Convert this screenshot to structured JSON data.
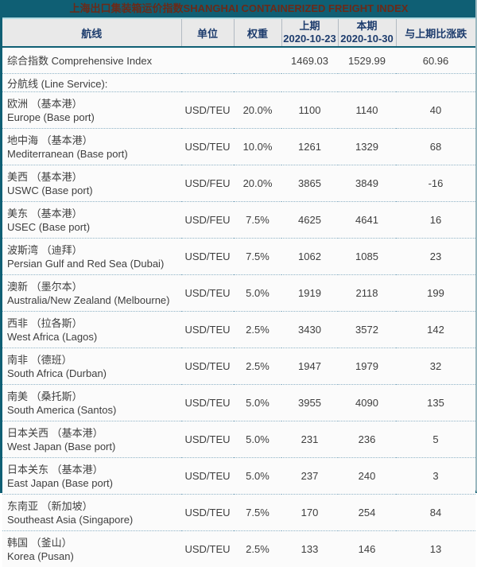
{
  "title": "上海出口集装箱运价指数SHANGHAI CONTAINERIZED FREIGHT INDEX",
  "columns": {
    "route": "航线",
    "unit": "单位",
    "weight": "权重",
    "prev_label": "上期",
    "prev_date": "2020-10-23",
    "curr_label": "本期",
    "curr_date": "2020-10-30",
    "change": "与上期比涨跌"
  },
  "comprehensive": {
    "label": "综合指数 Comprehensive Index",
    "prev": "1469.03",
    "curr": "1529.99",
    "change": "60.96"
  },
  "section_label": "分航线 (Line Service):",
  "rows": [
    {
      "cn": "欧洲 （基本港）",
      "en": "Europe (Base port)",
      "unit": "USD/TEU",
      "weight": "20.0%",
      "prev": "1100",
      "curr": "1140",
      "change": "40"
    },
    {
      "cn": "地中海 （基本港）",
      "en": "Mediterranean (Base port)",
      "unit": "USD/TEU",
      "weight": "10.0%",
      "prev": "1261",
      "curr": "1329",
      "change": "68"
    },
    {
      "cn": "美西 （基本港）",
      "en": "USWC (Base port)",
      "unit": "USD/FEU",
      "weight": "20.0%",
      "prev": "3865",
      "curr": "3849",
      "change": "-16"
    },
    {
      "cn": "美东 （基本港）",
      "en": "USEC (Base port)",
      "unit": "USD/FEU",
      "weight": "7.5%",
      "prev": "4625",
      "curr": "4641",
      "change": "16"
    },
    {
      "cn": "波斯湾 （迪拜）",
      "en": "Persian Gulf and Red Sea (Dubai)",
      "unit": "USD/TEU",
      "weight": "7.5%",
      "prev": "1062",
      "curr": "1085",
      "change": "23"
    },
    {
      "cn": "澳新 （墨尔本）",
      "en": "Australia/New Zealand (Melbourne)",
      "unit": "USD/TEU",
      "weight": "5.0%",
      "prev": "1919",
      "curr": "2118",
      "change": "199"
    },
    {
      "cn": "西非 （拉各斯）",
      "en": "West Africa (Lagos)",
      "unit": "USD/TEU",
      "weight": "2.5%",
      "prev": "3430",
      "curr": "3572",
      "change": "142"
    },
    {
      "cn": "南非 （德班）",
      "en": "South Africa (Durban)",
      "unit": "USD/TEU",
      "weight": "2.5%",
      "prev": "1947",
      "curr": "1979",
      "change": "32"
    },
    {
      "cn": "南美 （桑托斯）",
      "en": "South America (Santos)",
      "unit": "USD/TEU",
      "weight": "5.0%",
      "prev": "3955",
      "curr": "4090",
      "change": "135"
    },
    {
      "cn": "日本关西 （基本港）",
      "en": "West Japan (Base port)",
      "unit": "USD/TEU",
      "weight": "5.0%",
      "prev": "231",
      "curr": "236",
      "change": "5"
    },
    {
      "cn": "日本关东 （基本港）",
      "en": "East Japan (Base port)",
      "unit": "USD/TEU",
      "weight": "5.0%",
      "prev": "237",
      "curr": "240",
      "change": "3"
    },
    {
      "cn": "东南亚 （新加坡）",
      "en": "Southeast Asia (Singapore)",
      "unit": "USD/TEU",
      "weight": "7.5%",
      "prev": "170",
      "curr": "254",
      "change": "84"
    },
    {
      "cn": "韩国 （釜山）",
      "en": "Korea (Pusan)",
      "unit": "USD/TEU",
      "weight": "2.5%",
      "prev": "133",
      "curr": "146",
      "change": "13"
    }
  ],
  "colors": {
    "teal_border": "#0f5f74",
    "title_text": "#6b2a18",
    "header_bg": "#e9e9e9",
    "header_text": "#1d3c6d",
    "body_text": "#3e3e3e",
    "accent_line": "#b3dce3",
    "dotted_separator": "#8fb3c6"
  }
}
